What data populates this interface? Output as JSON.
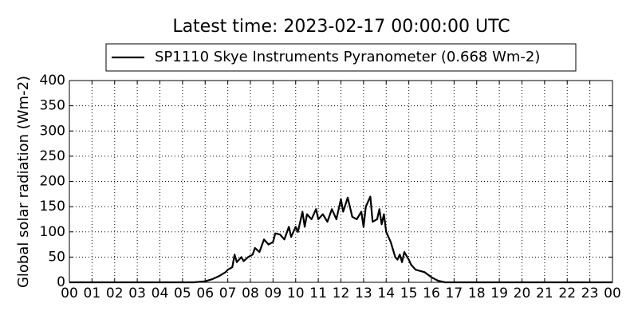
{
  "chart_data": {
    "type": "line",
    "title": "Latest time: 2023-02-17 00:00:00 UTC",
    "y_label": "Global solar radiation (Wm-2)",
    "grid": true,
    "xlim": [
      0,
      24
    ],
    "ylim": [
      0,
      400
    ],
    "xticks": [
      {
        "value": 0,
        "label": "00"
      },
      {
        "value": 1,
        "label": "01"
      },
      {
        "value": 2,
        "label": "02"
      },
      {
        "value": 3,
        "label": "03"
      },
      {
        "value": 4,
        "label": "04"
      },
      {
        "value": 5,
        "label": "05"
      },
      {
        "value": 6,
        "label": "06"
      },
      {
        "value": 7,
        "label": "07"
      },
      {
        "value": 8,
        "label": "08"
      },
      {
        "value": 9,
        "label": "09"
      },
      {
        "value": 10,
        "label": "10"
      },
      {
        "value": 11,
        "label": "11"
      },
      {
        "value": 12,
        "label": "12"
      },
      {
        "value": 13,
        "label": "13"
      },
      {
        "value": 14,
        "label": "14"
      },
      {
        "value": 15,
        "label": "15"
      },
      {
        "value": 16,
        "label": "16"
      },
      {
        "value": 17,
        "label": "17"
      },
      {
        "value": 18,
        "label": "18"
      },
      {
        "value": 19,
        "label": "19"
      },
      {
        "value": 20,
        "label": "20"
      },
      {
        "value": 21,
        "label": "21"
      },
      {
        "value": 22,
        "label": "22"
      },
      {
        "value": 23,
        "label": "23"
      },
      {
        "value": 24,
        "label": "00"
      }
    ],
    "yticks": [
      0,
      50,
      100,
      150,
      200,
      250,
      300,
      350,
      400
    ],
    "x": [
      0,
      5.5,
      6.0,
      6.3,
      6.6,
      6.9,
      7.0,
      7.2,
      7.3,
      7.4,
      7.6,
      7.7,
      7.9,
      8.1,
      8.2,
      8.4,
      8.6,
      8.8,
      9.0,
      9.1,
      9.3,
      9.5,
      9.7,
      9.8,
      10.0,
      10.1,
      10.3,
      10.4,
      10.5,
      10.7,
      10.9,
      11.0,
      11.2,
      11.4,
      11.6,
      11.8,
      12.0,
      12.1,
      12.3,
      12.5,
      12.7,
      12.9,
      13.0,
      13.1,
      13.3,
      13.4,
      13.6,
      13.7,
      13.8,
      13.9,
      14.0,
      14.2,
      14.4,
      14.5,
      14.6,
      14.7,
      14.8,
      15.0,
      15.1,
      15.3,
      15.7,
      16.0,
      16.3,
      16.6,
      24
    ],
    "series": [
      {
        "name": "SP1110 Skye Instruments Pyranometer (0.668 Wm-2)",
        "color": "#000000",
        "values": [
          0,
          0,
          2,
          6,
          12,
          20,
          25,
          30,
          55,
          40,
          50,
          42,
          50,
          55,
          68,
          60,
          85,
          75,
          80,
          97,
          95,
          85,
          110,
          90,
          110,
          100,
          140,
          110,
          135,
          125,
          145,
          125,
          135,
          120,
          145,
          125,
          165,
          140,
          168,
          130,
          125,
          140,
          110,
          150,
          170,
          120,
          125,
          145,
          115,
          135,
          100,
          80,
          50,
          45,
          55,
          40,
          60,
          45,
          35,
          25,
          20,
          10,
          3,
          0,
          0
        ]
      }
    ]
  }
}
